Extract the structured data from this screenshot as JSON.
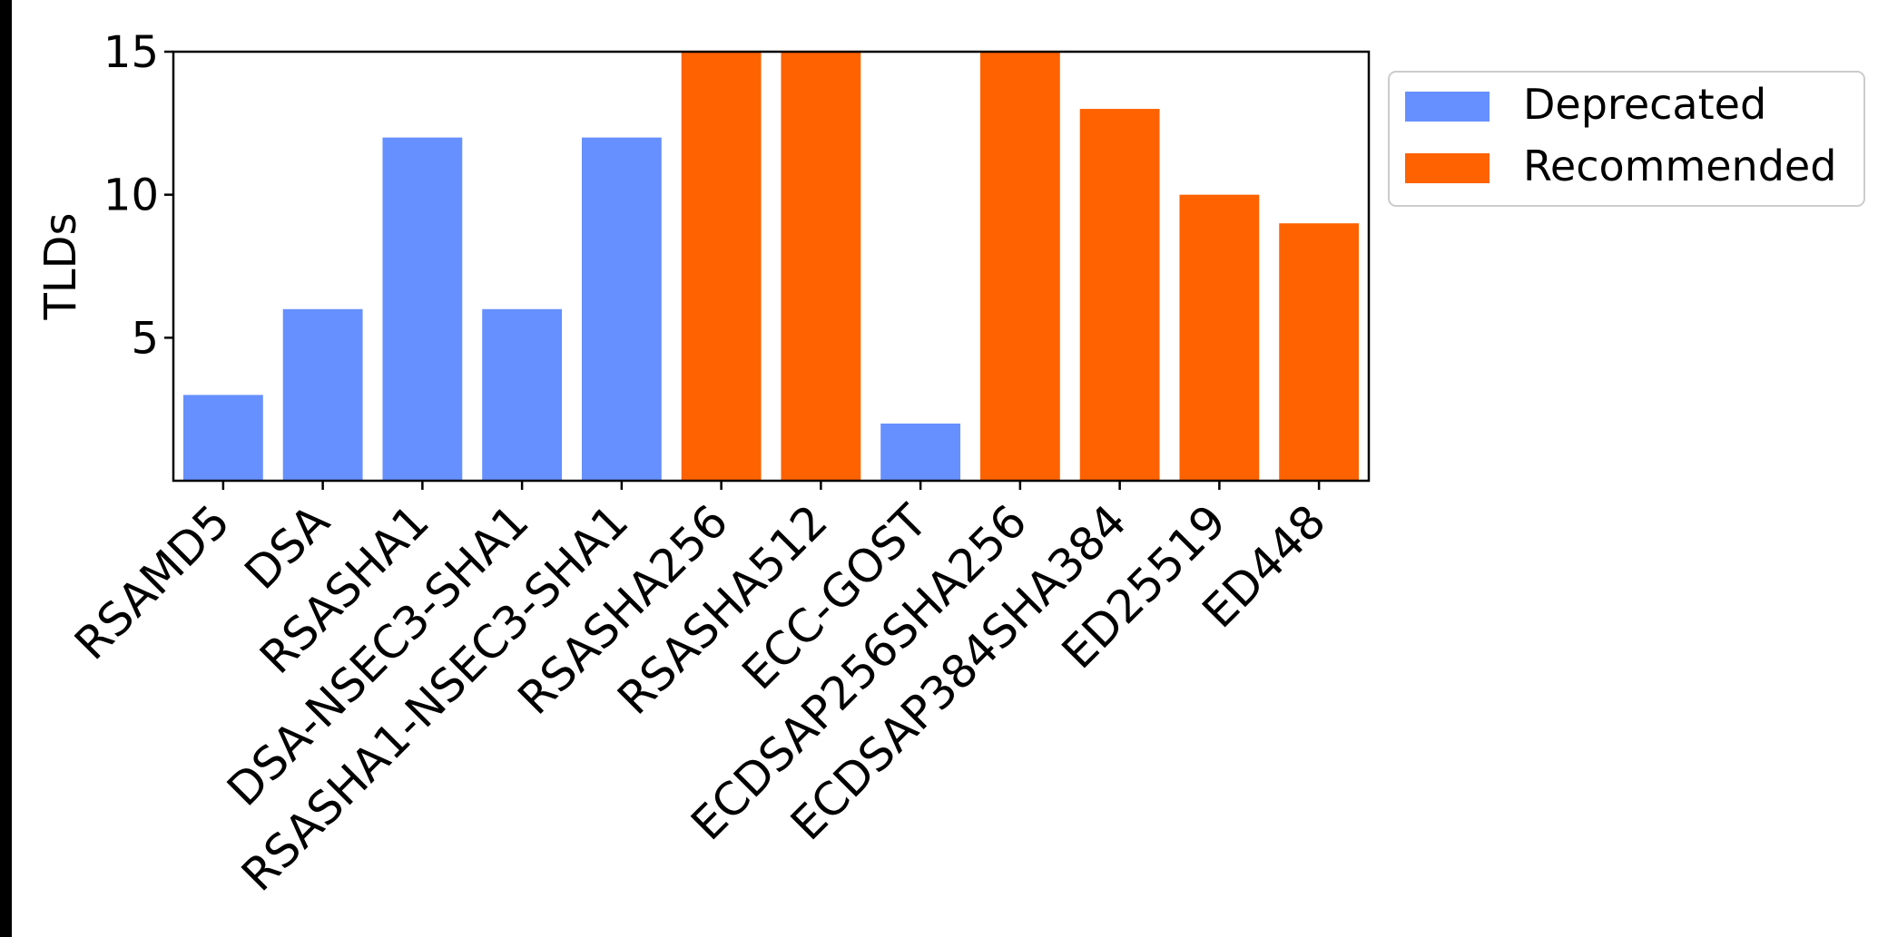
{
  "chart_data": {
    "type": "bar",
    "categories": [
      "RSAMD5",
      "DSA",
      "RSASHA1",
      "DSA-NSEC3-SHA1",
      "RSASHA1-NSEC3-SHA1",
      "RSASHA256",
      "RSASHA512",
      "ECC-GOST",
      "ECDSAP256SHA256",
      "ECDSAP384SHA384",
      "ED25519",
      "ED448"
    ],
    "values": [
      3,
      6,
      12,
      6,
      12,
      15,
      15,
      2,
      15,
      13,
      10,
      9
    ],
    "groups": [
      "Deprecated",
      "Deprecated",
      "Deprecated",
      "Deprecated",
      "Deprecated",
      "Recommended",
      "Recommended",
      "Deprecated",
      "Recommended",
      "Recommended",
      "Recommended",
      "Recommended"
    ],
    "ylabel": "TLDs",
    "xlabel": "",
    "ylim": [
      0,
      15
    ],
    "yticks": [
      5,
      10,
      15
    ],
    "legend": {
      "position": "outside-top-right",
      "entries": [
        {
          "label": "Deprecated",
          "color": "#6690ff"
        },
        {
          "label": "Recommended",
          "color": "#ff6200"
        }
      ]
    },
    "grid": false
  }
}
